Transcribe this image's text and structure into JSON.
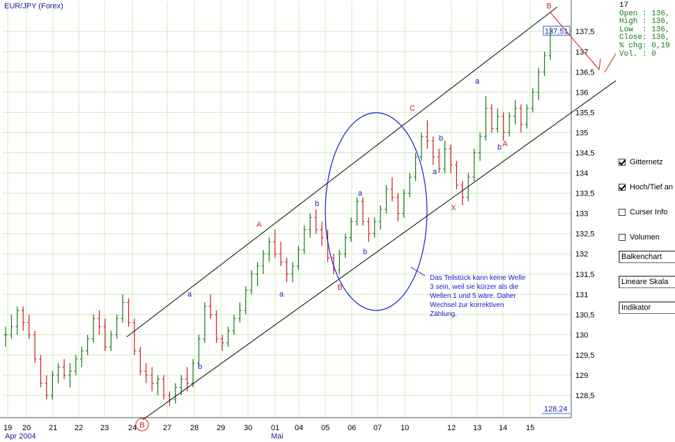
{
  "chart_data": {
    "type": "bar",
    "title": "EUR/JPY  (Forex)",
    "ylim": [
      127.95,
      137.9
    ],
    "yticks": [
      "128,5",
      "129",
      "129,5",
      "130",
      "130,5",
      "131",
      "131,5",
      "132",
      "132,5",
      "133",
      "133,5",
      "134",
      "134,5",
      "135",
      "135,5",
      "136",
      "136,5",
      "137",
      "137,5"
    ],
    "x_day_labels": [
      "19",
      "20",
      "21",
      "22",
      "23",
      "24",
      "27",
      "28",
      "29",
      "30",
      "01",
      "04",
      "05",
      "06",
      "07",
      "10",
      "12",
      "13",
      "14",
      "15"
    ],
    "x_month_labels": [
      "Apr 2004",
      "Mai"
    ],
    "current_price_label": "137,51",
    "low_price_label": "128,24",
    "bars": [
      [
        130.0,
        130.2,
        129.7,
        130.0
      ],
      [
        130.0,
        130.5,
        129.9,
        130.2
      ],
      [
        130.2,
        130.7,
        130.0,
        130.6
      ],
      [
        130.6,
        130.7,
        130.1,
        130.3
      ],
      [
        130.3,
        130.5,
        129.9,
        130.0
      ],
      [
        130.0,
        130.1,
        129.3,
        129.4
      ],
      [
        129.4,
        129.5,
        128.7,
        128.8
      ],
      [
        128.8,
        129.0,
        128.4,
        128.5
      ],
      [
        128.5,
        129.1,
        128.4,
        129.0
      ],
      [
        129.0,
        129.3,
        128.8,
        129.2
      ],
      [
        129.2,
        129.4,
        128.9,
        129.0
      ],
      [
        129.0,
        129.3,
        128.7,
        129.1
      ],
      [
        129.1,
        129.5,
        129.0,
        129.4
      ],
      [
        129.4,
        129.7,
        129.2,
        129.6
      ],
      [
        129.6,
        130.0,
        129.5,
        129.9
      ],
      [
        129.9,
        130.5,
        129.8,
        130.4
      ],
      [
        130.4,
        130.6,
        130.0,
        130.2
      ],
      [
        130.2,
        130.4,
        129.6,
        129.7
      ],
      [
        129.7,
        130.1,
        129.6,
        130.0
      ],
      [
        130.0,
        130.5,
        129.9,
        130.4
      ],
      [
        130.4,
        131.0,
        130.3,
        130.8
      ],
      [
        130.8,
        130.9,
        130.2,
        130.3
      ],
      [
        130.3,
        130.4,
        129.5,
        129.6
      ],
      [
        129.6,
        129.7,
        129.0,
        129.1
      ],
      [
        129.1,
        129.3,
        128.8,
        129.0
      ],
      [
        129.0,
        129.2,
        128.6,
        128.8
      ],
      [
        128.8,
        129.0,
        128.5,
        128.9
      ],
      [
        128.9,
        129.0,
        128.4,
        128.5
      ],
      [
        128.5,
        128.6,
        128.24,
        128.4
      ],
      [
        128.4,
        128.8,
        128.3,
        128.7
      ],
      [
        128.7,
        129.0,
        128.5,
        128.9
      ],
      [
        128.9,
        129.2,
        128.6,
        128.8
      ],
      [
        128.8,
        129.4,
        128.7,
        129.3
      ],
      [
        129.3,
        130.0,
        129.2,
        129.9
      ],
      [
        129.9,
        130.8,
        129.8,
        130.7
      ],
      [
        130.7,
        131.0,
        130.4,
        130.5
      ],
      [
        130.5,
        130.6,
        129.8,
        129.9
      ],
      [
        129.9,
        130.0,
        129.6,
        129.8
      ],
      [
        129.8,
        130.2,
        129.7,
        130.1
      ],
      [
        130.1,
        130.5,
        130.0,
        130.4
      ],
      [
        130.4,
        130.8,
        130.3,
        130.6
      ],
      [
        130.6,
        131.2,
        130.5,
        131.1
      ],
      [
        131.1,
        131.6,
        131.0,
        131.5
      ],
      [
        131.5,
        131.8,
        131.2,
        131.7
      ],
      [
        131.7,
        132.1,
        131.5,
        132.0
      ],
      [
        132.0,
        132.4,
        131.8,
        132.3
      ],
      [
        132.3,
        132.6,
        131.9,
        132.0
      ],
      [
        132.0,
        132.3,
        131.7,
        131.8
      ],
      [
        131.8,
        131.9,
        131.3,
        131.5
      ],
      [
        131.5,
        131.8,
        131.3,
        131.7
      ],
      [
        131.7,
        132.2,
        131.6,
        132.1
      ],
      [
        132.1,
        132.7,
        132.0,
        132.6
      ],
      [
        132.6,
        133.0,
        132.4,
        132.9
      ],
      [
        132.9,
        133.1,
        132.5,
        132.6
      ],
      [
        132.6,
        132.8,
        132.2,
        132.4
      ],
      [
        132.4,
        132.6,
        131.8,
        131.9
      ],
      [
        131.9,
        132.0,
        131.5,
        131.6
      ],
      [
        131.6,
        132.1,
        131.5,
        132.0
      ],
      [
        132.0,
        132.5,
        131.9,
        132.4
      ],
      [
        132.4,
        132.9,
        132.3,
        132.8
      ],
      [
        132.8,
        133.4,
        132.7,
        133.3
      ],
      [
        133.3,
        133.4,
        132.7,
        132.8
      ],
      [
        132.8,
        132.9,
        132.3,
        132.5
      ],
      [
        132.5,
        132.9,
        132.4,
        132.8
      ],
      [
        132.8,
        133.2,
        132.6,
        133.1
      ],
      [
        133.1,
        133.7,
        133.0,
        133.6
      ],
      [
        133.6,
        133.9,
        133.3,
        133.4
      ],
      [
        133.4,
        133.5,
        132.8,
        133.0
      ],
      [
        133.0,
        133.6,
        132.9,
        133.5
      ],
      [
        133.5,
        134.0,
        133.4,
        133.9
      ],
      [
        133.9,
        134.5,
        133.8,
        134.4
      ],
      [
        134.4,
        135.0,
        134.3,
        134.9
      ],
      [
        134.9,
        135.3,
        134.6,
        134.8
      ],
      [
        134.8,
        134.9,
        134.2,
        134.4
      ],
      [
        134.4,
        134.6,
        134.0,
        134.1
      ],
      [
        134.1,
        134.8,
        134.0,
        134.6
      ],
      [
        134.6,
        134.7,
        134.0,
        134.2
      ],
      [
        134.2,
        134.3,
        133.6,
        133.7
      ],
      [
        133.7,
        133.8,
        133.2,
        133.4
      ],
      [
        133.4,
        134.0,
        133.3,
        133.9
      ],
      [
        133.9,
        134.6,
        133.8,
        134.5
      ],
      [
        134.5,
        135.0,
        134.3,
        134.9
      ],
      [
        134.9,
        135.9,
        134.8,
        135.6
      ],
      [
        135.6,
        135.7,
        135.0,
        135.1
      ],
      [
        135.1,
        135.6,
        135.0,
        135.4
      ],
      [
        135.4,
        135.5,
        134.8,
        135.0
      ],
      [
        135.0,
        135.5,
        134.9,
        135.4
      ],
      [
        135.4,
        135.8,
        135.2,
        135.6
      ],
      [
        135.6,
        135.7,
        135.0,
        135.2
      ],
      [
        135.2,
        135.7,
        135.1,
        135.6
      ],
      [
        135.6,
        136.1,
        135.5,
        136.0
      ],
      [
        136.0,
        136.6,
        135.8,
        136.5
      ],
      [
        136.5,
        137.0,
        136.4,
        136.9
      ],
      [
        136.9,
        137.6,
        136.8,
        137.5
      ]
    ]
  },
  "overlay": {
    "wave_labels": [
      {
        "text": "A",
        "color": "#cc2222"
      },
      {
        "text": "a",
        "color": "#1a1acc"
      },
      {
        "text": "b",
        "color": "#1a1acc"
      },
      {
        "text": "b",
        "color": "#1a1acc"
      },
      {
        "text": "a",
        "color": "#1a1acc"
      },
      {
        "text": "B",
        "color": "#cc2222"
      },
      {
        "text": "a",
        "color": "#1a1acc"
      },
      {
        "text": "b",
        "color": "#1a1acc"
      },
      {
        "text": "C",
        "color": "#cc2222"
      },
      {
        "text": "a",
        "color": "#1a1acc"
      },
      {
        "text": "b",
        "color": "#1a1acc"
      },
      {
        "text": "X",
        "color": "#cc2222"
      },
      {
        "text": "a",
        "color": "#1a1acc"
      },
      {
        "text": "b",
        "color": "#1a1acc"
      },
      {
        "text": "A",
        "color": "#cc2222"
      },
      {
        "text": "B",
        "color": "#cc2222"
      }
    ],
    "circled_labels": [
      "B",
      "C"
    ],
    "annotation_lines": [
      "Das Teilstück kann keine Welle",
      "3 sein, weil sie kürzer als die",
      "Wellen 1 und 5 wäre. Daher",
      "Wechsel zur korrektiven",
      "Zählung."
    ]
  },
  "info": {
    "line0": "17",
    "open": "Open : 136,",
    "high": "High : 136,",
    "low": "Low  : 136,",
    "close": "Close: 136,",
    "chg": "% chg: 0,19",
    "vol": "Vol. : 0"
  },
  "controls": {
    "gitternetz": {
      "label": "Gitternetz",
      "checked": true
    },
    "hochtief": {
      "label": "Hoch/Tief an",
      "checked": true
    },
    "curser": {
      "label": "Curser Info",
      "checked": false
    },
    "volumen": {
      "label": "Volumen",
      "checked": false
    },
    "chart_type": "Balkenchart",
    "scale": "Lineare Skala",
    "indicator": "Indikator"
  },
  "colors": {
    "grid": "#cfe8b8",
    "bar_up": "#127a12",
    "bar_down": "#cc1a1a",
    "wave_blue": "#1a1acc",
    "wave_red": "#cc2222",
    "axis_text": "#1a1a99"
  }
}
